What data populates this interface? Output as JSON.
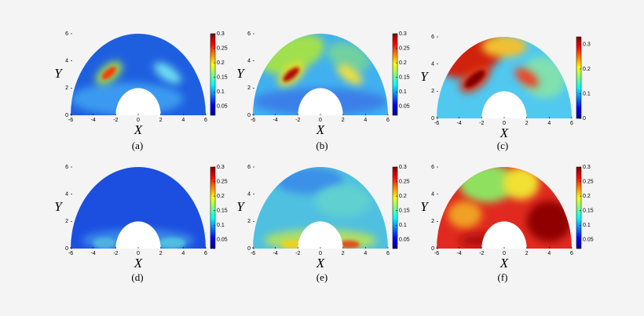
{
  "panels": [
    {
      "caption": "(a)",
      "xlabel": "X",
      "ylabel": "Y",
      "xlim": [
        -6,
        6
      ],
      "ylim": [
        0,
        6
      ],
      "xticks": [
        -6,
        -4,
        -2,
        0,
        2,
        4,
        6
      ],
      "yticks": [
        0,
        2,
        4,
        6
      ],
      "clim": [
        0.02,
        0.3
      ],
      "cticks": [
        0.05,
        0.1,
        0.15,
        0.2,
        0.25,
        0.3
      ]
    },
    {
      "caption": "(b)",
      "xlabel": "X",
      "ylabel": "Y",
      "xlim": [
        -6,
        6
      ],
      "ylim": [
        0,
        6
      ],
      "xticks": [
        -6,
        -4,
        -2,
        0,
        2,
        4,
        6
      ],
      "yticks": [
        0,
        2,
        4,
        6
      ],
      "clim": [
        0.02,
        0.3
      ],
      "cticks": [
        0.05,
        0.1,
        0.15,
        0.2,
        0.25,
        0.3
      ]
    },
    {
      "caption": "(c)",
      "xlabel": "X",
      "ylabel": "Y",
      "xlim": [
        -6,
        6
      ],
      "ylim": [
        0,
        6
      ],
      "xticks": [
        -6,
        -4,
        -2,
        0,
        2,
        4,
        6
      ],
      "yticks": [
        0,
        2,
        4,
        6
      ],
      "clim": [
        0,
        0.33
      ],
      "cticks": [
        0,
        0.1,
        0.2,
        0.3
      ]
    },
    {
      "caption": "(d)",
      "xlabel": "X",
      "ylabel": "Y",
      "xlim": [
        -6,
        6
      ],
      "ylim": [
        0,
        6
      ],
      "xticks": [
        -6,
        -4,
        -2,
        0,
        2,
        4,
        6
      ],
      "yticks": [
        0,
        2,
        4,
        6
      ],
      "clim": [
        0.02,
        0.3
      ],
      "cticks": [
        0.05,
        0.1,
        0.15,
        0.2,
        0.25,
        0.3
      ]
    },
    {
      "caption": "(e)",
      "xlabel": "X",
      "ylabel": "Y",
      "xlim": [
        -6,
        6
      ],
      "ylim": [
        0,
        6
      ],
      "xticks": [
        -6,
        -4,
        -2,
        0,
        2,
        4,
        6
      ],
      "yticks": [
        0,
        2,
        4,
        6
      ],
      "clim": [
        0.02,
        0.3
      ],
      "cticks": [
        0.05,
        0.1,
        0.15,
        0.2,
        0.25,
        0.3
      ]
    },
    {
      "caption": "(f)",
      "xlabel": "X",
      "ylabel": "Y",
      "xlim": [
        -6,
        6
      ],
      "ylim": [
        0,
        6
      ],
      "xticks": [
        -6,
        -4,
        -2,
        0,
        2,
        4,
        6
      ],
      "yticks": [
        0,
        2,
        4,
        6
      ],
      "clim": [
        0.02,
        0.3
      ],
      "cticks": [
        0.05,
        0.1,
        0.15,
        0.2,
        0.25,
        0.3
      ]
    }
  ]
}
